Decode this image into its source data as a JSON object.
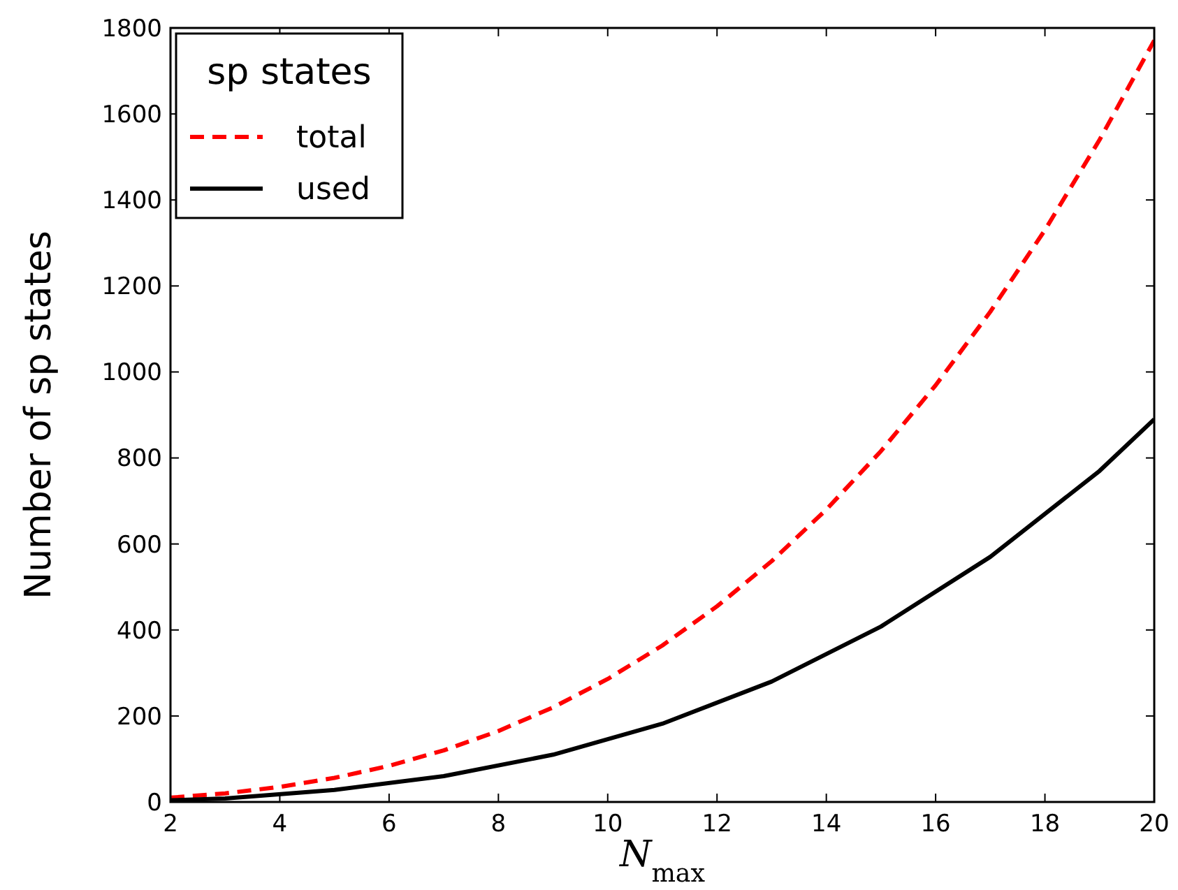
{
  "chart_data": {
    "type": "line",
    "xlabel": "N$_{max}$",
    "ylabel": "Number of sp states",
    "legend_title": "sp states",
    "legend": "top left",
    "grid": false,
    "xlim": [
      2,
      20
    ],
    "xticks": [
      2,
      4,
      6,
      8,
      10,
      12,
      14,
      16,
      18,
      20
    ],
    "ylim": [
      0,
      1800
    ],
    "yticks": [
      0,
      200,
      400,
      600,
      800,
      1000,
      1200,
      1400,
      1600,
      1800
    ],
    "series": [
      {
        "name": "total",
        "color": "#ff0000",
        "line_style": "dashed",
        "x": [
          2,
          3,
          4,
          5,
          6,
          7,
          8,
          9,
          10,
          11,
          12,
          13,
          14,
          15,
          16,
          17,
          18,
          19,
          20
        ],
        "values": [
          10,
          20,
          35,
          56,
          84,
          120,
          165,
          220,
          286,
          364,
          455,
          560,
          680,
          816,
          969,
          1140,
          1330,
          1540,
          1771
        ]
      },
      {
        "name": "used",
        "color": "#000000",
        "line_style": "solid",
        "x": [
          2,
          3,
          5,
          7,
          9,
          11,
          13,
          15,
          17,
          19,
          20
        ],
        "values": [
          4,
          8,
          28,
          60,
          110,
          182,
          280,
          408,
          570,
          770,
          890
        ]
      }
    ]
  }
}
